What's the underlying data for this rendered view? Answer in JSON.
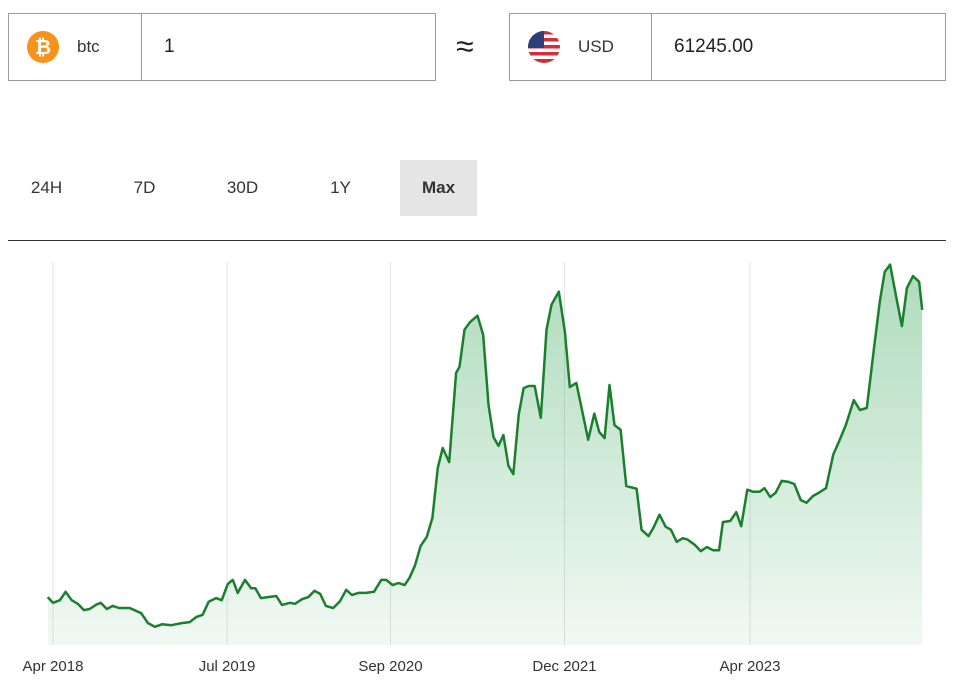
{
  "converter": {
    "from": {
      "code": "btc",
      "icon": "bitcoin-icon",
      "value": "1"
    },
    "approx_symbol": "≈",
    "to": {
      "code": "USD",
      "icon": "us-flag-icon",
      "value": "61245.00"
    }
  },
  "tabs": [
    {
      "label": "24H",
      "active": false
    },
    {
      "label": "7D",
      "active": false
    },
    {
      "label": "30D",
      "active": false
    },
    {
      "label": "1Y",
      "active": false
    },
    {
      "label": "Max",
      "active": true
    }
  ],
  "colors": {
    "line": "#1a7f2e",
    "fill": "#4caf6a",
    "bitcoin": "#f7931a",
    "active_tab": "#e5e5e5"
  },
  "chart_data": {
    "type": "area",
    "title": "",
    "xlabel": "",
    "ylabel": "",
    "x_tick_labels": [
      {
        "date": "2018-04-01",
        "label": "Apr 2018"
      },
      {
        "date": "2019-07-01",
        "label": "Jul 2019"
      },
      {
        "date": "2020-09-01",
        "label": "Sep 2020"
      },
      {
        "date": "2021-12-01",
        "label": "Dec 2021"
      },
      {
        "date": "2023-04-01",
        "label": "Apr 2023"
      }
    ],
    "grid": "vertical",
    "ylim": [
      0,
      73500
    ],
    "series": [
      {
        "x": [
          "2018-03-18",
          "2018-04-01",
          "2018-04-19",
          "2018-05-04",
          "2018-05-20",
          "2018-06-05",
          "2018-06-21",
          "2018-07-06",
          "2018-07-22",
          "2018-08-04",
          "2018-08-20",
          "2018-09-05",
          "2018-09-21",
          "2018-10-19",
          "2018-11-18",
          "2018-12-06",
          "2018-12-24",
          "2019-01-12",
          "2019-02-05",
          "2019-03-04",
          "2019-03-25",
          "2019-04-12",
          "2019-04-28",
          "2019-05-14",
          "2019-06-02",
          "2019-06-17",
          "2019-07-03",
          "2019-07-16",
          "2019-07-29",
          "2019-08-17",
          "2019-09-02",
          "2019-09-13",
          "2019-09-28",
          "2019-10-16",
          "2019-11-07",
          "2019-11-22",
          "2019-12-13",
          "2019-12-26",
          "2020-01-14",
          "2020-01-30",
          "2020-02-15",
          "2020-03-01",
          "2020-03-16",
          "2020-04-04",
          "2020-04-22",
          "2020-05-08",
          "2020-05-23",
          "2020-06-09",
          "2020-06-29",
          "2020-07-20",
          "2020-08-08",
          "2020-08-21",
          "2020-09-07",
          "2020-09-22",
          "2020-10-08",
          "2020-10-21",
          "2020-11-04",
          "2020-11-19",
          "2020-12-05",
          "2020-12-20",
          "2021-01-03",
          "2021-01-16",
          "2021-02-02",
          "2021-02-20",
          "2021-03-01",
          "2021-03-14",
          "2021-03-29",
          "2021-04-17",
          "2021-05-02",
          "2021-05-16",
          "2021-05-29",
          "2021-06-11",
          "2021-06-24",
          "2021-07-07",
          "2021-07-20",
          "2021-08-03",
          "2021-08-16",
          "2021-08-29",
          "2021-09-14",
          "2021-09-30",
          "2021-10-15",
          "2021-10-28",
          "2021-11-16",
          "2021-12-02",
          "2021-12-15",
          "2022-01-01",
          "2022-01-13",
          "2022-02-01",
          "2022-02-17",
          "2022-03-02",
          "2022-03-16",
          "2022-03-29",
          "2022-04-11",
          "2022-04-27",
          "2022-05-12",
          "2022-06-08",
          "2022-06-21",
          "2022-07-09",
          "2022-07-22",
          "2022-08-07",
          "2022-08-23",
          "2022-09-06",
          "2022-09-21",
          "2022-10-07",
          "2022-10-20",
          "2022-11-08",
          "2022-11-23",
          "2022-12-09",
          "2022-12-25",
          "2023-01-10",
          "2023-01-20",
          "2023-02-08",
          "2023-02-24",
          "2023-03-09",
          "2023-03-25",
          "2023-04-10",
          "2023-04-26",
          "2023-05-09",
          "2023-05-24",
          "2023-06-07",
          "2023-06-23",
          "2023-07-11",
          "2023-07-26",
          "2023-08-12",
          "2023-08-27",
          "2023-09-13",
          "2023-09-28",
          "2023-10-17",
          "2023-11-05",
          "2023-11-20",
          "2023-12-08",
          "2023-12-29",
          "2024-01-14",
          "2024-02-01",
          "2024-02-21",
          "2024-03-06",
          "2024-03-19",
          "2024-04-02",
          "2024-04-18",
          "2024-05-03",
          "2024-05-16",
          "2024-06-01",
          "2024-06-17",
          "2024-06-25"
        ],
        "y": [
          9200,
          8100,
          8600,
          10200,
          8600,
          7900,
          6700,
          6900,
          7700,
          8100,
          6900,
          7500,
          7100,
          7100,
          6100,
          4200,
          3500,
          4000,
          3800,
          4200,
          4400,
          5400,
          5800,
          8300,
          9000,
          8600,
          11700,
          12500,
          10000,
          12500,
          10900,
          10900,
          9000,
          9200,
          9400,
          7700,
          8100,
          7900,
          8800,
          9200,
          10400,
          9800,
          7500,
          7100,
          8400,
          10600,
          9600,
          10000,
          10000,
          10200,
          12500,
          12500,
          11500,
          11900,
          11500,
          12900,
          15200,
          19000,
          20700,
          24400,
          34000,
          37800,
          35100,
          52200,
          53400,
          60500,
          62000,
          63200,
          59500,
          46100,
          39900,
          38200,
          40300,
          34400,
          32800,
          44200,
          49300,
          49700,
          49700,
          43600,
          60500,
          65300,
          67800,
          60100,
          49500,
          50300,
          46100,
          39400,
          44400,
          40900,
          39700,
          49900,
          42200,
          41300,
          30500,
          30000,
          22100,
          20900,
          22500,
          25000,
          22700,
          22100,
          19800,
          20500,
          20200,
          19200,
          18000,
          18800,
          18200,
          18200,
          23600,
          23800,
          25500,
          22800,
          29800,
          29400,
          29400,
          30100,
          28400,
          29200,
          31500,
          31300,
          30900,
          27800,
          27300,
          28600,
          29200,
          30100,
          36500,
          39000,
          42200,
          47000,
          45100,
          45500,
          57600,
          65900,
          71600,
          73000,
          66800,
          61200,
          68500,
          70800,
          69700,
          64300
        ]
      }
    ]
  }
}
